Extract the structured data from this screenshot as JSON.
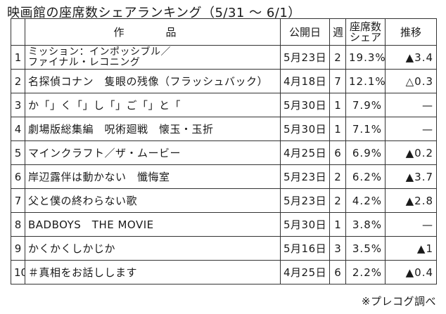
{
  "title": "映画館の座席数シェアランキング（5/31 〜 6/1）",
  "headers": {
    "rank": "",
    "title": "作　品",
    "date": "公開日",
    "weeks": "週",
    "share": "座席数\nシェア",
    "trend": "推移"
  },
  "rows": [
    {
      "rank": "1",
      "title": "ミッション：インポッシブル／\nファイナル・レコニング",
      "date": "5月23日",
      "weeks": "2",
      "share": "19.3%",
      "trend": "▲3.4"
    },
    {
      "rank": "2",
      "title": "名探偵コナン　隻眼の残像（フラッシュバック）",
      "date": "4月18日",
      "weeks": "7",
      "share": "12.1%",
      "trend": "△0.3"
    },
    {
      "rank": "3",
      "title": "か「」く「」し「」ご「」と「",
      "date": "5月30日",
      "weeks": "1",
      "share": "7.9%",
      "trend": "—"
    },
    {
      "rank": "4",
      "title": "劇場版総集編　呪術廻戦　懐玉・玉折",
      "date": "5月30日",
      "weeks": "1",
      "share": "7.1%",
      "trend": "—"
    },
    {
      "rank": "5",
      "title": "マインクラフト／ザ・ムービー",
      "date": "4月25日",
      "weeks": "6",
      "share": "6.9%",
      "trend": "▲0.2"
    },
    {
      "rank": "6",
      "title": "岸辺露伴は動かない　懺悔室",
      "date": "5月23日",
      "weeks": "2",
      "share": "6.2%",
      "trend": "▲3.7"
    },
    {
      "rank": "7",
      "title": "父と僕の終わらない歌",
      "date": "5月23日",
      "weeks": "2",
      "share": "4.2%",
      "trend": "▲2.8"
    },
    {
      "rank": "8",
      "title": "BADBOYS　THE MOVIE",
      "date": "5月30日",
      "weeks": "1",
      "share": "3.8%",
      "trend": "—"
    },
    {
      "rank": "9",
      "title": "かくかくしかじか",
      "date": "5月16日",
      "weeks": "3",
      "share": "3.5%",
      "trend": "▲1"
    },
    {
      "rank": "10",
      "title": "＃真相をお話しします",
      "date": "4月25日",
      "weeks": "6",
      "share": "2.2%",
      "trend": "▲0.4"
    }
  ],
  "source": "※プレコグ調べ"
}
